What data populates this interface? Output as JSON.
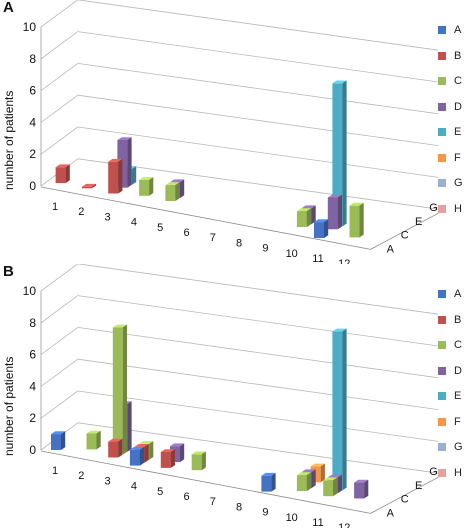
{
  "chart_data": [
    {
      "type": "bar3d",
      "panel_label": "A",
      "ylabel": "number of patients",
      "ylim": [
        0,
        10
      ],
      "yticks": [
        0,
        2,
        4,
        6,
        8,
        10
      ],
      "x_categories": [
        "1",
        "2",
        "3",
        "4",
        "5",
        "6",
        "7",
        "8",
        "9",
        "10",
        "11",
        "12"
      ],
      "depth_ticks": [
        "A",
        "C",
        "E",
        "G"
      ],
      "grid": true,
      "legend_position": "right",
      "series": [
        {
          "name": "A",
          "color": "#4472C4",
          "values": [
            0,
            0,
            0,
            0,
            0,
            0,
            0,
            0,
            0,
            0,
            1,
            0
          ]
        },
        {
          "name": "B",
          "color": "#C0504D",
          "values": [
            1,
            0.1,
            2,
            0,
            0,
            0,
            0,
            0,
            0,
            0,
            0,
            0
          ]
        },
        {
          "name": "C",
          "color": "#9BBB59",
          "values": [
            0,
            0,
            0,
            1,
            1,
            0,
            0,
            0,
            0,
            1,
            0,
            2
          ]
        },
        {
          "name": "D",
          "color": "#8064A2",
          "values": [
            0,
            0,
            3,
            0,
            1,
            0,
            0,
            0,
            0,
            1,
            2,
            0
          ]
        },
        {
          "name": "E",
          "color": "#4BACC6",
          "values": [
            0,
            0,
            1,
            0,
            0,
            0,
            0,
            0,
            0,
            0,
            9,
            0
          ]
        },
        {
          "name": "F",
          "color": "#F79646",
          "values": [
            0,
            0,
            0,
            0,
            0,
            0,
            0,
            0,
            0,
            0,
            0,
            0
          ]
        },
        {
          "name": "G",
          "color": "#9BB0D0",
          "values": [
            0,
            0,
            0,
            0,
            0,
            0,
            0,
            0,
            0,
            0,
            0,
            0
          ]
        },
        {
          "name": "H",
          "color": "#E6A0A0",
          "values": [
            0,
            0,
            0,
            0,
            0,
            0,
            0,
            0,
            0,
            0,
            0,
            0
          ]
        }
      ]
    },
    {
      "type": "bar3d",
      "panel_label": "B",
      "ylabel": "number of patients",
      "ylim": [
        0,
        10
      ],
      "yticks": [
        0,
        2,
        4,
        6,
        8,
        10
      ],
      "x_categories": [
        "1",
        "2",
        "3",
        "4",
        "5",
        "6",
        "7",
        "8",
        "9",
        "10",
        "11",
        "12"
      ],
      "depth_ticks": [
        "A",
        "C",
        "E",
        "G"
      ],
      "grid": true,
      "legend_position": "right",
      "series": [
        {
          "name": "A",
          "color": "#4472C4",
          "values": [
            1,
            0,
            0,
            1,
            0,
            0,
            0,
            0,
            1,
            0,
            0,
            0
          ]
        },
        {
          "name": "B",
          "color": "#C0504D",
          "values": [
            0,
            0,
            1,
            1,
            1,
            0,
            0,
            0,
            0,
            0,
            0,
            0
          ]
        },
        {
          "name": "C",
          "color": "#9BBB59",
          "values": [
            0,
            1,
            8,
            1,
            0,
            1,
            0,
            0,
            0,
            1,
            1,
            0
          ]
        },
        {
          "name": "D",
          "color": "#8064A2",
          "values": [
            0,
            0,
            3,
            0,
            1,
            0,
            0,
            0,
            0,
            1,
            1,
            1
          ]
        },
        {
          "name": "E",
          "color": "#4BACC6",
          "values": [
            0,
            0,
            0,
            0,
            0,
            0,
            0,
            0,
            0,
            0,
            10,
            0
          ]
        },
        {
          "name": "F",
          "color": "#F79646",
          "values": [
            0,
            0,
            0,
            0,
            0,
            0,
            0,
            0,
            0,
            1,
            0,
            0
          ]
        },
        {
          "name": "G",
          "color": "#9BB0D0",
          "values": [
            0,
            0,
            0,
            0,
            0,
            0,
            0,
            0,
            0,
            0,
            0,
            0
          ]
        },
        {
          "name": "H",
          "color": "#E6A0A0",
          "values": [
            0,
            0,
            0,
            0,
            0,
            0,
            0,
            0,
            0,
            0,
            0,
            0
          ]
        }
      ]
    }
  ]
}
